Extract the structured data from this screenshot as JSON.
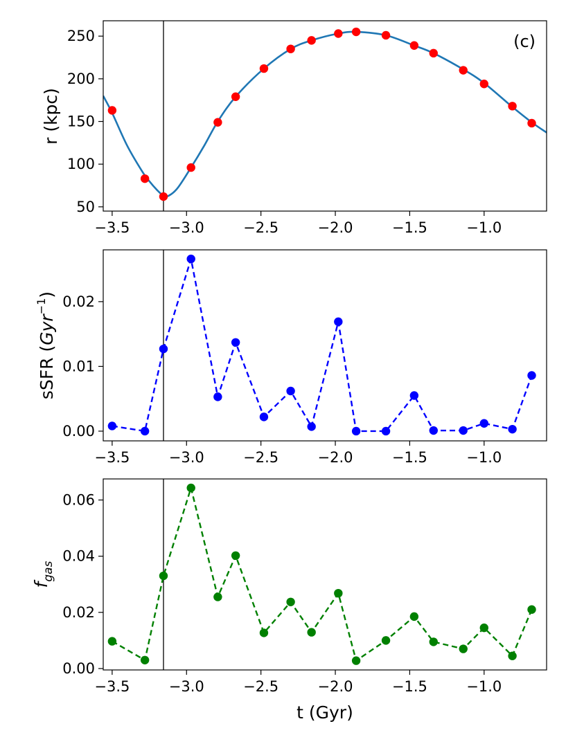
{
  "figure": {
    "xlabel": "t (Gyr)",
    "panel_tag": "(c)",
    "vline_x": -3.155,
    "x_ticks": [
      -3.5,
      -3.0,
      -2.5,
      -2.0,
      -1.5,
      -1.0
    ],
    "x_tick_labels": [
      "−3.5",
      "−3.0",
      "−2.5",
      "−2.0",
      "−1.5",
      "−1.0"
    ],
    "xlim": [
      -3.56,
      -0.58
    ]
  },
  "chart_data": [
    {
      "type": "line",
      "ylabel": "r (kpc)",
      "ylim": [
        45,
        268
      ],
      "y_ticks": [
        50,
        100,
        150,
        200,
        250
      ],
      "y_tick_labels": [
        "50",
        "100",
        "150",
        "200",
        "250"
      ],
      "curve": {
        "color": "#1f77b4",
        "x": [
          -3.56,
          -3.5,
          -3.4,
          -3.3,
          -3.25,
          -3.2,
          -3.155,
          -3.12,
          -3.06,
          -2.97,
          -2.88,
          -2.79,
          -2.67,
          -2.48,
          -2.3,
          -2.16,
          -1.98,
          -1.86,
          -1.66,
          -1.47,
          -1.34,
          -1.14,
          -1.0,
          -0.81,
          -0.68,
          -0.58
        ],
        "y": [
          180,
          160,
          122,
          92,
          80,
          70,
          63,
          63,
          72,
          96,
          122,
          150,
          179,
          212,
          235,
          245,
          253,
          255,
          251,
          239,
          230,
          211,
          195,
          167,
          149,
          137
        ]
      },
      "series": [
        {
          "color": "#ff0000",
          "style": "markers",
          "x": [
            -3.5,
            -3.28,
            -3.155,
            -2.97,
            -2.79,
            -2.67,
            -2.48,
            -2.3,
            -2.16,
            -1.98,
            -1.86,
            -1.66,
            -1.47,
            -1.34,
            -1.14,
            -1.0,
            -0.81,
            -0.68
          ],
          "values": [
            163,
            83,
            62,
            96,
            149,
            179,
            212,
            235,
            245,
            253,
            255,
            251,
            239,
            230,
            210,
            194,
            168,
            148
          ]
        }
      ]
    },
    {
      "type": "line",
      "ylabel": "sSFR (Gyr⁻¹)",
      "ylim": [
        -0.0015,
        0.028
      ],
      "y_ticks": [
        0.0,
        0.01,
        0.02
      ],
      "y_tick_labels": [
        "0.00",
        "0.01",
        "0.02"
      ],
      "series": [
        {
          "color": "#0000ff",
          "style": "dashed-markers",
          "x": [
            -3.5,
            -3.28,
            -3.155,
            -2.97,
            -2.79,
            -2.67,
            -2.48,
            -2.3,
            -2.16,
            -1.98,
            -1.86,
            -1.66,
            -1.47,
            -1.34,
            -1.14,
            -1.0,
            -0.81,
            -0.68
          ],
          "values": [
            0.0008,
            0.0,
            0.0127,
            0.0266,
            0.0053,
            0.0137,
            0.0022,
            0.0062,
            0.0007,
            0.0169,
            0.0,
            0.0,
            0.0055,
            0.0001,
            0.0001,
            0.0012,
            0.0003,
            0.0086
          ]
        }
      ]
    },
    {
      "type": "line",
      "ylabel": "f_gas",
      "ylim": [
        -0.0005,
        0.0675
      ],
      "y_ticks": [
        0.0,
        0.02,
        0.04,
        0.06
      ],
      "y_tick_labels": [
        "0.00",
        "0.02",
        "0.04",
        "0.06"
      ],
      "series": [
        {
          "color": "#008000",
          "style": "dashed-markers",
          "x": [
            -3.5,
            -3.28,
            -3.155,
            -2.97,
            -2.79,
            -2.67,
            -2.48,
            -2.3,
            -2.16,
            -1.98,
            -1.86,
            -1.66,
            -1.47,
            -1.34,
            -1.14,
            -1.0,
            -0.81,
            -0.68
          ],
          "values": [
            0.0097,
            0.003,
            0.033,
            0.0643,
            0.0255,
            0.0402,
            0.0127,
            0.0237,
            0.0129,
            0.0268,
            0.0028,
            0.01,
            0.0185,
            0.0095,
            0.007,
            0.0145,
            0.0045,
            0.021
          ]
        }
      ]
    }
  ]
}
